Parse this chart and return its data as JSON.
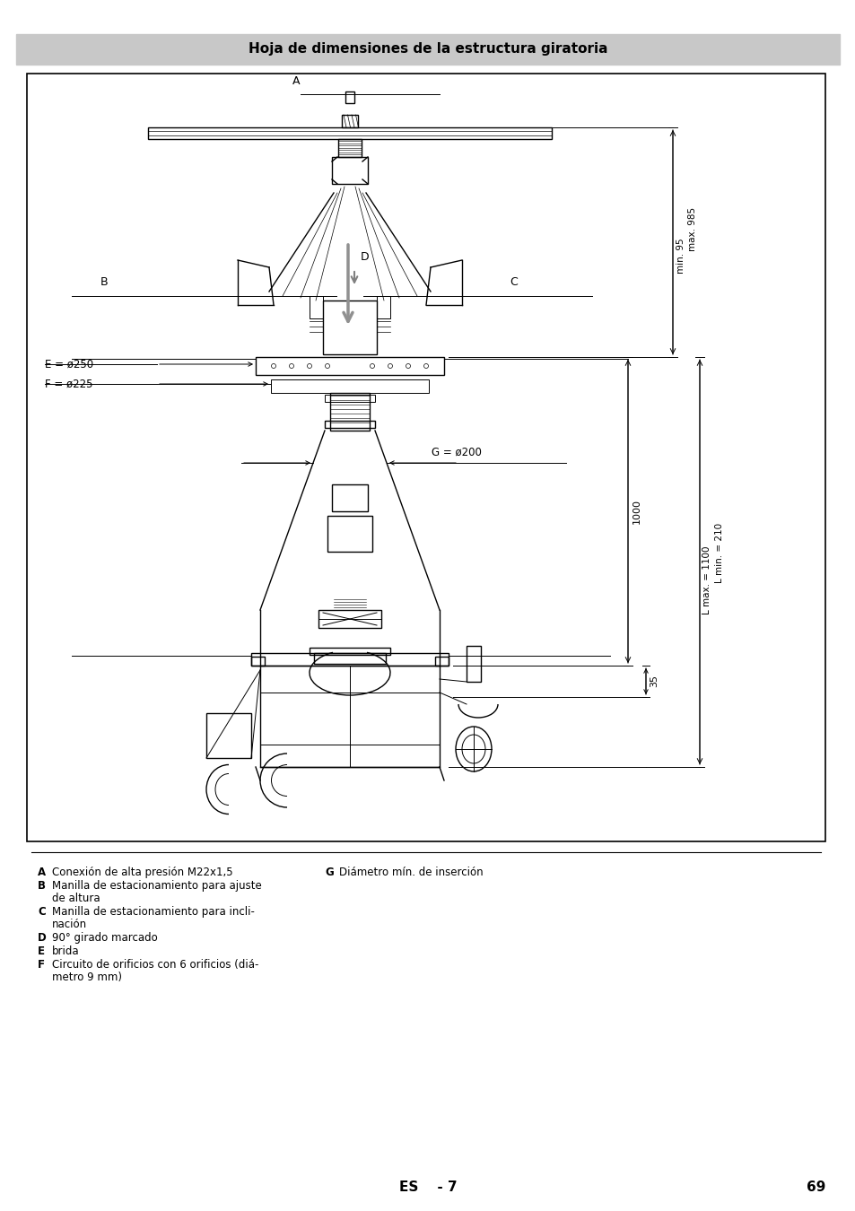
{
  "title": "Hoja de dimensiones de la estructura giratoria",
  "page_number": "69",
  "footer_text": "ES    - 7",
  "bg_color": "#ffffff",
  "header_bg": "#c8c8c8",
  "line_color": "#000000",
  "legend_items_left": [
    [
      "A",
      "Conexión de alta presión M22x1,5"
    ],
    [
      "B",
      "Manilla de estacionamiento para ajuste",
      "de altura"
    ],
    [
      "C",
      "Manilla de estacionamiento para incli-",
      "nación"
    ],
    [
      "D",
      "90° girado marcado"
    ],
    [
      "E",
      "brida"
    ],
    [
      "F",
      "Circuito de orificios con 6 orificios (diá-",
      "metro 9 mm)"
    ]
  ],
  "legend_items_right": [
    [
      "G",
      "Diámetro mín. de inserción"
    ]
  ]
}
